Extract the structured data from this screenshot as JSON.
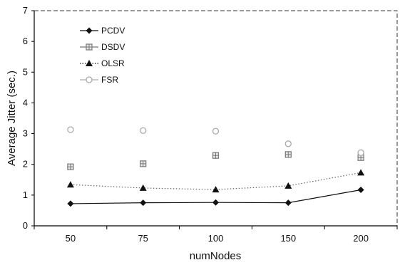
{
  "chart_data": {
    "type": "line",
    "xlabel": "numNodes",
    "ylabel": "Average Jitter (sec.)",
    "categories": [
      "50",
      "75",
      "100",
      "150",
      "200"
    ],
    "ylim": [
      0,
      7
    ],
    "yticks": [
      0,
      1,
      2,
      3,
      4,
      5,
      6,
      7
    ],
    "grid": false,
    "legend_position": "top-left",
    "series": [
      {
        "name": "PCDV",
        "values": [
          0.72,
          0.75,
          0.76,
          0.75,
          1.17
        ],
        "color": "#111111",
        "marker": "diamond",
        "line": "solid"
      },
      {
        "name": "DSDV",
        "values": [
          1.92,
          2.02,
          2.29,
          2.32,
          2.22
        ],
        "color": "#777777",
        "marker": "square-cross",
        "line": "none"
      },
      {
        "name": "OLSR",
        "values": [
          1.34,
          1.23,
          1.18,
          1.3,
          1.73
        ],
        "color": "#111111",
        "marker": "triangle",
        "line": "dotted"
      },
      {
        "name": "FSR",
        "values": [
          3.13,
          3.1,
          3.08,
          2.67,
          2.38
        ],
        "color": "#aaaaaa",
        "marker": "circle",
        "line": "none"
      }
    ]
  }
}
